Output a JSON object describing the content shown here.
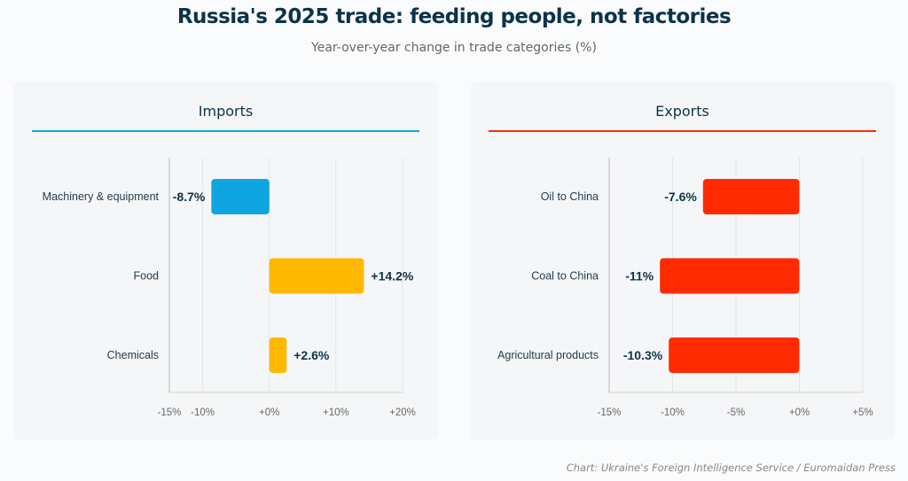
{
  "title": "Russia's 2025 trade: feeding people, not factories",
  "subtitle": "Year-over-year change in trade categories (%)",
  "source": "Chart: Ukraine's Foreign Intelligence Service / Euromaidan Press",
  "chart_data": [
    {
      "type": "bar",
      "orientation": "horizontal",
      "title": "Imports",
      "accent": "#0ea5e0",
      "categories": [
        "Machinery & equipment",
        "Food",
        "Chemicals"
      ],
      "values": [
        -8.7,
        14.2,
        2.6
      ],
      "data_labels": [
        "-8.7%",
        "+14.2%",
        "+2.6%"
      ],
      "colors": [
        "#0ea5e0",
        "#ffb800",
        "#ffb800"
      ],
      "xlim": [
        -15,
        20
      ],
      "ticks": [
        -15,
        -10,
        0,
        10,
        20
      ],
      "tick_labels": [
        "-15%",
        "-10%",
        "+0%",
        "+10%",
        "+20%"
      ],
      "grid": true
    },
    {
      "type": "bar",
      "orientation": "horizontal",
      "title": "Exports",
      "accent": "#ff2a00",
      "categories": [
        "Oil to China",
        "Coal to China",
        "Agricultural products"
      ],
      "values": [
        -7.6,
        -11,
        -10.3
      ],
      "data_labels": [
        "-7.6%",
        "-11%",
        "-10.3%"
      ],
      "colors": [
        "#ff2a00",
        "#ff2a00",
        "#ff2a00"
      ],
      "xlim": [
        -15,
        5
      ],
      "ticks": [
        -15,
        -10,
        -5,
        0,
        5
      ],
      "tick_labels": [
        "-15%",
        "-10%",
        "-5%",
        "+0%",
        "+5%"
      ],
      "grid": true
    }
  ]
}
